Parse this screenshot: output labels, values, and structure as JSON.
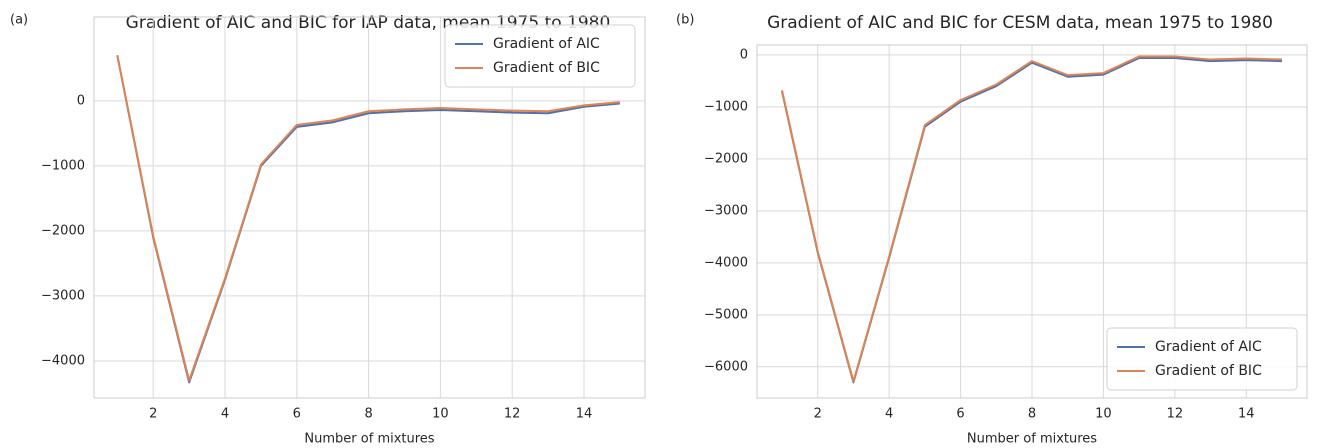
{
  "chart_data": [
    {
      "type": "line",
      "panel_label": "(a)",
      "title": "Gradient of AIC and BIC for IAP data, mean 1975 to 1980",
      "x_label": "Number of mixtures",
      "x": [
        1,
        2,
        3,
        4,
        5,
        6,
        7,
        8,
        9,
        10,
        11,
        12,
        13,
        14,
        15
      ],
      "series": [
        {
          "name": "Gradient of AIC",
          "color": "#4c72b0",
          "values": [
            700,
            -2100,
            -4330,
            -2750,
            -1000,
            -400,
            -330,
            -190,
            -160,
            -140,
            -160,
            -180,
            -190,
            -90,
            -40
          ]
        },
        {
          "name": "Gradient of BIC",
          "color": "#dd8452",
          "values": [
            700,
            -2080,
            -4300,
            -2730,
            -980,
            -370,
            -300,
            -160,
            -130,
            -110,
            -130,
            -150,
            -160,
            -70,
            -20
          ]
        }
      ],
      "xlim": [
        0.35,
        15.7
      ],
      "ylim": [
        -4570,
        1290
      ],
      "xticks": [
        2,
        4,
        6,
        8,
        10,
        12,
        14
      ],
      "yticks": [
        {
          "value": -4000,
          "label": "−4000"
        },
        {
          "value": -3000,
          "label": "−3000"
        },
        {
          "value": -2000,
          "label": "−2000"
        },
        {
          "value": -1000,
          "label": "−1000"
        },
        0
      ],
      "grid": true,
      "legend": "upper right"
    },
    {
      "type": "line",
      "panel_label": "(b)",
      "title": "Gradient of AIC and BIC for CESM data, mean 1975 to 1980",
      "x_label": "Number of mixtures",
      "x": [
        1,
        2,
        3,
        4,
        5,
        6,
        7,
        8,
        9,
        10,
        11,
        12,
        13,
        14,
        15
      ],
      "series": [
        {
          "name": "Gradient of AIC",
          "color": "#4c72b0",
          "values": [
            -700,
            -3800,
            -6300,
            -3900,
            -1380,
            -900,
            -600,
            -150,
            -420,
            -380,
            -60,
            -60,
            -120,
            -100,
            -120
          ]
        },
        {
          "name": "Gradient of BIC",
          "color": "#dd8452",
          "values": [
            -680,
            -3780,
            -6280,
            -3880,
            -1350,
            -870,
            -570,
            -120,
            -390,
            -350,
            -30,
            -30,
            -90,
            -70,
            -90
          ]
        }
      ],
      "xlim": [
        0.3,
        15.7
      ],
      "ylim": [
        -6600,
        190
      ],
      "xticks": [
        2,
        4,
        6,
        8,
        10,
        12,
        14
      ],
      "yticks": [
        {
          "value": -6000,
          "label": "−6000"
        },
        {
          "value": -5000,
          "label": "−5000"
        },
        {
          "value": -4000,
          "label": "−4000"
        },
        {
          "value": -3000,
          "label": "−3000"
        },
        {
          "value": -2000,
          "label": "−2000"
        },
        {
          "value": -1000,
          "label": "−1000"
        },
        0
      ],
      "grid": true,
      "legend": "lower right"
    }
  ]
}
